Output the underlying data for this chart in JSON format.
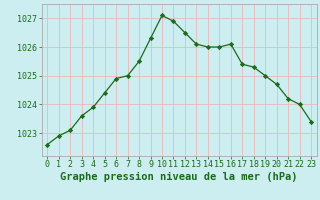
{
  "x": [
    0,
    1,
    2,
    3,
    4,
    5,
    6,
    7,
    8,
    9,
    10,
    11,
    12,
    13,
    14,
    15,
    16,
    17,
    18,
    19,
    20,
    21,
    22,
    23
  ],
  "y": [
    1022.6,
    1022.9,
    1023.1,
    1023.6,
    1023.9,
    1024.4,
    1024.9,
    1025.0,
    1025.5,
    1026.3,
    1027.1,
    1026.9,
    1026.5,
    1026.1,
    1026.0,
    1026.0,
    1026.1,
    1025.4,
    1025.3,
    1025.0,
    1024.7,
    1024.2,
    1024.0,
    1023.4
  ],
  "line_color": "#1a6b1a",
  "marker": "D",
  "marker_size": 2.2,
  "background_color": "#cceef0",
  "grid_color": "#e8b8b8",
  "xlabel": "Graphe pression niveau de la mer (hPa)",
  "xlabel_fontsize": 7.5,
  "ylabel_ticks": [
    1023,
    1024,
    1025,
    1026,
    1027
  ],
  "xlim": [
    -0.5,
    23.5
  ],
  "ylim": [
    1022.2,
    1027.5
  ],
  "tick_label_color": "#1a6b1a",
  "tick_label_fontsize": 6,
  "xlabel_color": "#1a6b1a",
  "xlabel_fontweight": "bold",
  "spine_color": "#aaaaaa"
}
